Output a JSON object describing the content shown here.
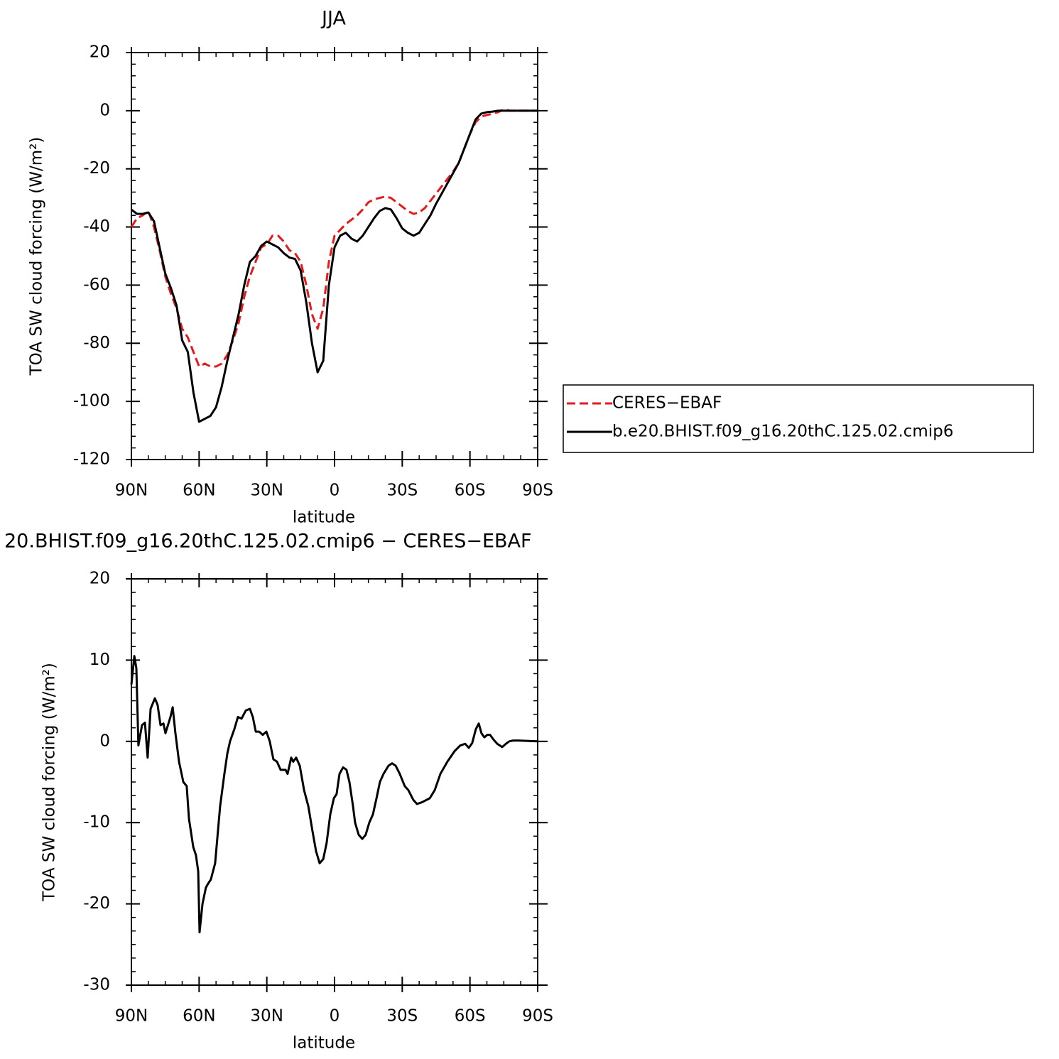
{
  "chart_data": [
    {
      "type": "line",
      "title": "JJA",
      "xlabel": "latitude",
      "ylabel": "TOA SW cloud forcing (W/m²)",
      "xlim": [
        90,
        -90
      ],
      "ylim": [
        -120,
        20
      ],
      "xticks": [
        {
          "value": 90,
          "label": "90N"
        },
        {
          "value": 60,
          "label": "60N"
        },
        {
          "value": 30,
          "label": "30N"
        },
        0,
        {
          "value": -30,
          "label": "30S"
        },
        {
          "value": -60,
          "label": "60S"
        },
        {
          "value": -90,
          "label": "90S"
        }
      ],
      "yticks": [
        -120,
        -100,
        -80,
        -60,
        -40,
        -20,
        0,
        20
      ],
      "xminor": 3,
      "yminor": 4,
      "legend": "right",
      "x": [
        90,
        87.5,
        85,
        82.5,
        80,
        77.5,
        75,
        72.5,
        70,
        67.5,
        65,
        62.5,
        60,
        57.5,
        55,
        52.5,
        50,
        47.5,
        45,
        42.5,
        40,
        37.5,
        35,
        32.5,
        30,
        27.5,
        25,
        22.5,
        20,
        17.5,
        15,
        12.5,
        10,
        7.5,
        5,
        2.5,
        0,
        -2.5,
        -5,
        -7.5,
        -10,
        -12.5,
        -15,
        -17.5,
        -20,
        -22.5,
        -25,
        -27.5,
        -30,
        -32.5,
        -35,
        -37.5,
        -40,
        -42.5,
        -45,
        -47.5,
        -50,
        -52.5,
        -55,
        -57.5,
        -60,
        -62.5,
        -65,
        -67.5,
        -70,
        -72.5,
        -75,
        -77.5,
        -80,
        -82.5,
        -85,
        -87.5,
        -90
      ],
      "series": [
        {
          "name": "CERES−EBAF",
          "color": "#e41a1c",
          "dashed": true,
          "values": [
            -40,
            -37,
            -36,
            -34.5,
            -40,
            -48,
            -57,
            -63,
            -68,
            -75,
            -78,
            -83,
            -88,
            -87,
            -88,
            -88,
            -87,
            -84,
            -79,
            -73,
            -64,
            -57,
            -52,
            -47,
            -46,
            -43,
            -43,
            -45,
            -48,
            -49,
            -52,
            -60,
            -70,
            -75,
            -68,
            -52,
            -43,
            -41,
            -39,
            -37.5,
            -36,
            -34,
            -31.5,
            -30.5,
            -30,
            -29.5,
            -30,
            -31.5,
            -33,
            -34.5,
            -35.5,
            -35,
            -33.5,
            -31,
            -28.5,
            -26,
            -23.5,
            -21,
            -18,
            -13,
            -8,
            -4,
            -2,
            -1.5,
            -1,
            -0.5,
            0.5,
            0,
            0,
            0,
            0,
            0,
            0
          ]
        },
        {
          "name": "b.e20.BHIST.f09_g16.20thC.125.02.cmip6",
          "color": "#000000",
          "dashed": false,
          "values": [
            -34,
            -35.5,
            -35.5,
            -35,
            -38,
            -47,
            -56,
            -61,
            -67,
            -79,
            -83,
            -97,
            -107,
            -106,
            -105,
            -102,
            -95,
            -86,
            -78,
            -70,
            -60,
            -52,
            -50,
            -46.5,
            -45,
            -46,
            -47,
            -49,
            -50.5,
            -51,
            -55,
            -66,
            -80,
            -90,
            -86,
            -60,
            -47,
            -43,
            -42,
            -44,
            -45,
            -43,
            -40,
            -37,
            -34.5,
            -33.5,
            -34,
            -37,
            -40.5,
            -42,
            -43,
            -42,
            -39,
            -36,
            -32,
            -28.5,
            -25,
            -21.5,
            -18,
            -13,
            -8,
            -3,
            -1,
            -0.5,
            -0.3,
            0,
            0,
            0,
            0,
            0,
            0,
            0,
            0
          ]
        }
      ]
    },
    {
      "type": "line",
      "title": "20.BHIST.f09_g16.20thC.125.02.cmip6 − CERES−EBAF",
      "xlabel": "latitude",
      "ylabel": "TOA SW cloud forcing (W/m²)",
      "xlim": [
        90,
        -90
      ],
      "ylim": [
        -30,
        20
      ],
      "xticks": [
        {
          "value": 90,
          "label": "90N"
        },
        {
          "value": 60,
          "label": "60N"
        },
        {
          "value": 30,
          "label": "30N"
        },
        0,
        {
          "value": -30,
          "label": "30S"
        },
        {
          "value": -60,
          "label": "60S"
        },
        {
          "value": -90,
          "label": "90S"
        }
      ],
      "yticks": [
        -30,
        -20,
        -10,
        0,
        10,
        20
      ],
      "xminor": 3,
      "yminor": 5,
      "x": [
        90,
        88.7,
        87.8,
        86.9,
        85.3,
        84.0,
        82.8,
        81.5,
        79.6,
        78.4,
        77.1,
        75.8,
        74.9,
        72.7,
        71.7,
        70.5,
        68.9,
        67.0,
        65.5,
        64.5,
        62.6,
        61.4,
        60.4,
        59.8,
        58.5,
        57.0,
        56.0,
        54.8,
        52.9,
        50.7,
        48.8,
        47.5,
        46.3,
        44.4,
        42.8,
        41.2,
        39.3,
        37.5,
        36.2,
        34.9,
        33.4,
        31.8,
        30.2,
        28.7,
        27.1,
        25.5,
        23.9,
        21.7,
        20.8,
        19.2,
        18.3,
        17.0,
        15.4,
        13.5,
        11.6,
        9.8,
        8.2,
        6.6,
        5.0,
        3.5,
        1.9,
        0.3,
        -0.9,
        -2.2,
        -3.8,
        -5.3,
        -6.6,
        -8.2,
        -9.1,
        -10.7,
        -12.3,
        -13.8,
        -15.4,
        -17.0,
        -18.6,
        -20.1,
        -21.7,
        -23.9,
        -25.5,
        -27.1,
        -28.9,
        -31.1,
        -32.7,
        -34.9,
        -36.5,
        -38.7,
        -42.2,
        -44.4,
        -46.9,
        -50.0,
        -53.2,
        -55.7,
        -57.9,
        -59.5,
        -61.0,
        -62.6,
        -63.9,
        -65.1,
        -66.4,
        -67.7,
        -68.9,
        -70.5,
        -72.1,
        -74.3,
        -75.9,
        -77.4,
        -79.0,
        -81.5,
        -90
      ],
      "series": [
        {
          "color": "#000000",
          "dashed": false,
          "values": [
            7,
            10.5,
            9,
            -0.5,
            2,
            2.3,
            -2,
            4,
            5.3,
            4.5,
            2,
            2.2,
            1,
            3,
            4.2,
            1,
            -2.5,
            -5,
            -5.5,
            -9.5,
            -13,
            -14,
            -16,
            -23.5,
            -20,
            -18,
            -17.5,
            -17,
            -15,
            -8,
            -4,
            -1.5,
            0,
            1.5,
            3,
            2.8,
            3.8,
            4,
            3,
            1.2,
            1.2,
            0.8,
            1.2,
            0,
            -2.2,
            -2.5,
            -3.5,
            -3.5,
            -4,
            -2,
            -2.5,
            -2,
            -3,
            -6,
            -8,
            -11,
            -13.5,
            -15,
            -14.5,
            -12.5,
            -9,
            -7,
            -6.5,
            -4,
            -3.2,
            -3.5,
            -5,
            -8,
            -10,
            -11.5,
            -12,
            -11.5,
            -10,
            -9,
            -7,
            -5,
            -4,
            -3,
            -2.7,
            -3,
            -4,
            -5.5,
            -6,
            -7.2,
            -7.7,
            -7.5,
            -7,
            -6,
            -4,
            -2.5,
            -1.2,
            -0.5,
            -0.3,
            -0.8,
            -0.2,
            1.5,
            2.2,
            1,
            0.5,
            0.8,
            0.8,
            0.2,
            -0.3,
            -0.7,
            -0.3,
            0,
            0.1,
            0.1,
            0
          ]
        }
      ]
    }
  ]
}
